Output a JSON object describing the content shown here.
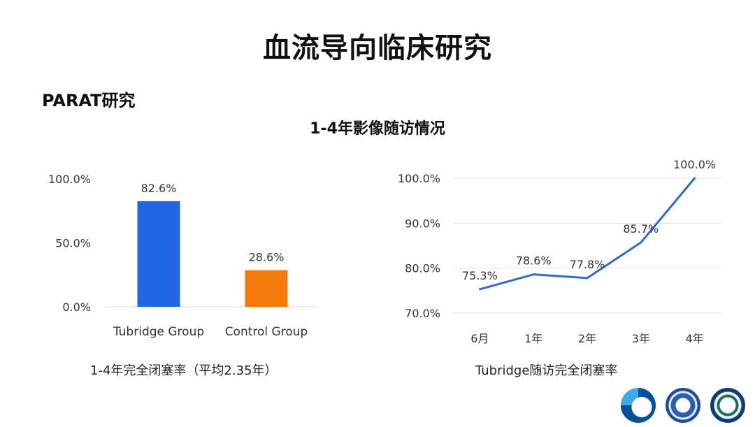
{
  "title": "血流导向临床研究",
  "section_title": "PARAT研究",
  "chart_heading": "1-4年影像随访情况",
  "chart_data": [
    {
      "type": "bar",
      "categories": [
        "Tubridge Group",
        "Control Group"
      ],
      "values": [
        82.6,
        28.6
      ],
      "data_labels": [
        "82.6%",
        "28.6%"
      ],
      "colors": [
        "#2266e3",
        "#f47b0b"
      ],
      "yticks": [
        0,
        50,
        100
      ],
      "ytick_labels": [
        "0.0%",
        "50.0%",
        "100.0%"
      ],
      "ylim": [
        0,
        100
      ],
      "grid": false,
      "caption": "1-4年完全闭塞率（平均2.35年）"
    },
    {
      "type": "line",
      "categories": [
        "6月",
        "1年",
        "2年",
        "3年",
        "4年"
      ],
      "values": [
        75.3,
        78.6,
        77.8,
        85.7,
        100.0
      ],
      "data_labels": [
        "75.3%",
        "78.6%",
        "77.8%",
        "85.7%",
        "100.0%"
      ],
      "color": "#2f6bd0",
      "yticks": [
        70,
        80,
        90,
        100
      ],
      "ytick_labels": [
        "70.0%",
        "80.0%",
        "90.0%",
        "100.0%"
      ],
      "ylim": [
        70,
        100
      ],
      "grid": true,
      "caption": "Tubridge随访完全闭塞率"
    }
  ],
  "logos": [
    "logo-icon",
    "hospital-seal-icon",
    "university-seal-icon"
  ]
}
